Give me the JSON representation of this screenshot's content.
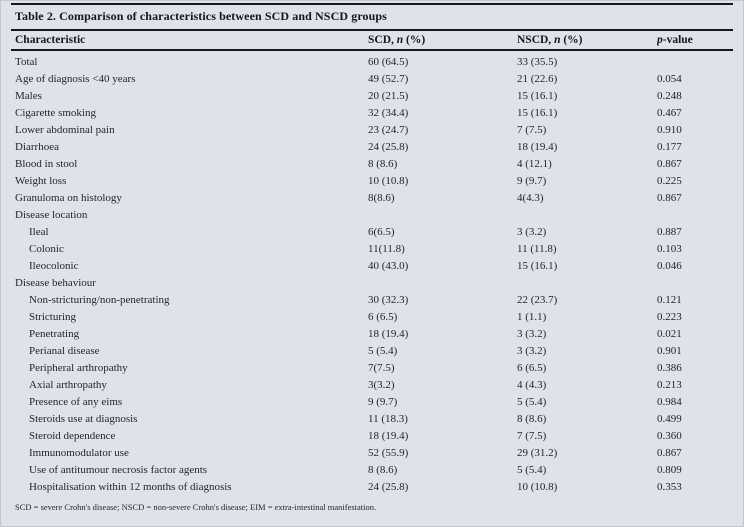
{
  "colors": {
    "panel_background": "#dfe2e9",
    "rule_color": "#17181d",
    "text_color": "#1e222b"
  },
  "table": {
    "title": "Table 2. Comparison of characteristics between SCD and NSCD groups",
    "columns": {
      "characteristic": "Characteristic",
      "scd": {
        "pre": "SCD, ",
        "italic": "n",
        "post": " (%)"
      },
      "nscd": {
        "pre": "NSCD, ",
        "italic": "n",
        "post": " (%)"
      },
      "pvalue": {
        "italic": "p",
        "post": "-value"
      }
    },
    "rows": [
      {
        "label": "Total",
        "scd": "60 (64.5)",
        "nscd": "33 (35.5)",
        "p": "",
        "indent": false
      },
      {
        "label": "Age of diagnosis <40 years",
        "scd": "49 (52.7)",
        "nscd": "21 (22.6)",
        "p": "0.054",
        "indent": false
      },
      {
        "label": "Males",
        "scd": "20 (21.5)",
        "nscd": "15 (16.1)",
        "p": "0.248",
        "indent": false
      },
      {
        "label": "Cigarette smoking",
        "scd": "32 (34.4)",
        "nscd": "15 (16.1)",
        "p": "0.467",
        "indent": false
      },
      {
        "label": "Lower abdominal pain",
        "scd": "23 (24.7)",
        "nscd": "7 (7.5)",
        "p": "0.910",
        "indent": false
      },
      {
        "label": "Diarrhoea",
        "scd": "24 (25.8)",
        "nscd": "18 (19.4)",
        "p": "0.177",
        "indent": false
      },
      {
        "label": "Blood in stool",
        "scd": "8 (8.6)",
        "nscd": "4 (12.1)",
        "p": "0.867",
        "indent": false
      },
      {
        "label": "Weight loss",
        "scd": "10 (10.8)",
        "nscd": "9 (9.7)",
        "p": "0.225",
        "indent": false
      },
      {
        "label": "Granuloma on histology",
        "scd": "8(8.6)",
        "nscd": "4(4.3)",
        "p": "0.867",
        "indent": false
      },
      {
        "label": "Disease location",
        "scd": "",
        "nscd": "",
        "p": "",
        "indent": false
      },
      {
        "label": "Ileal",
        "scd": "6(6.5)",
        "nscd": "3 (3.2)",
        "p": "0.887",
        "indent": true
      },
      {
        "label": "Colonic",
        "scd": "11(11.8)",
        "nscd": "11 (11.8)",
        "p": "0.103",
        "indent": true
      },
      {
        "label": "Ileocolonic",
        "scd": "40 (43.0)",
        "nscd": "15 (16.1)",
        "p": "0.046",
        "indent": true
      },
      {
        "label": "Disease behaviour",
        "scd": "",
        "nscd": "",
        "p": "",
        "indent": false
      },
      {
        "label": "Non-stricturing/non-penetrating",
        "scd": "30 (32.3)",
        "nscd": "22 (23.7)",
        "p": "0.121",
        "indent": true
      },
      {
        "label": "Stricturing",
        "scd": "6 (6.5)",
        "nscd": "1 (1.1)",
        "p": "0.223",
        "indent": true
      },
      {
        "label": "Penetrating",
        "scd": "18 (19.4)",
        "nscd": "3 (3.2)",
        "p": "0.021",
        "indent": true
      },
      {
        "label": "Perianal disease",
        "scd": "5 (5.4)",
        "nscd": "3 (3.2)",
        "p": "0.901",
        "indent": true
      },
      {
        "label": "Peripheral arthropathy",
        "scd": "7(7.5)",
        "nscd": "6 (6.5)",
        "p": "0.386",
        "indent": true
      },
      {
        "label": "Axial arthropathy",
        "scd": "3(3.2)",
        "nscd": "4 (4.3)",
        "p": "0.213",
        "indent": true
      },
      {
        "label": "Presence of any eims",
        "scd": "9 (9.7)",
        "nscd": "5 (5.4)",
        "p": "0.984",
        "indent": true
      },
      {
        "label": "Steroids use at diagnosis",
        "scd": "11 (18.3)",
        "nscd": "8 (8.6)",
        "p": "0.499",
        "indent": true
      },
      {
        "label": "Steroid dependence",
        "scd": "18 (19.4)",
        "nscd": "7 (7.5)",
        "p": "0.360",
        "indent": true
      },
      {
        "label": "Immunomodulator use",
        "scd": "52 (55.9)",
        "nscd": "29 (31.2)",
        "p": "0.867",
        "indent": true
      },
      {
        "label": "Use of antitumour necrosis factor agents",
        "scd": "8 (8.6)",
        "nscd": "5 (5.4)",
        "p": "0.809",
        "indent": true
      },
      {
        "label": "Hospitalisation within 12 months of diagnosis",
        "scd": "24 (25.8)",
        "nscd": "10 (10.8)",
        "p": "0.353",
        "indent": true
      }
    ],
    "footnote": "SCD = severe Crohn's disease; NSCD = non-severe Crohn's disease; EIM = extra-intestinal manifestation."
  }
}
